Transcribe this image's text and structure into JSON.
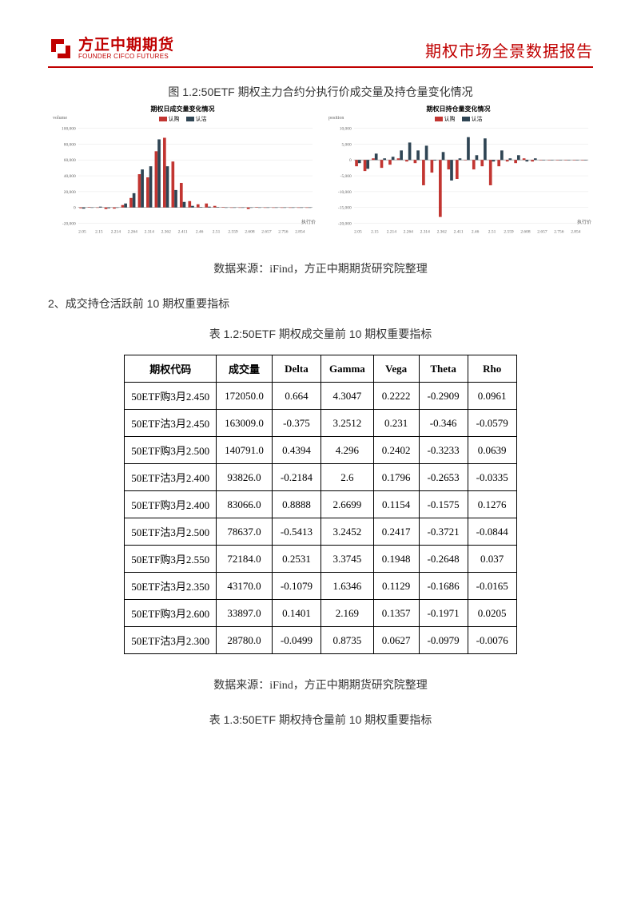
{
  "header": {
    "logo_cn": "方正中期期货",
    "logo_en": "FOUNDER CIFCO FUTURES",
    "report_title": "期权市场全景数据报告",
    "logo_color": "#c00000"
  },
  "figure": {
    "caption": "图 1.2:50ETF 期权主力合约分执行价成交量及持仓量变化情况",
    "source": "数据来源：iFind，方正中期期货研究院整理"
  },
  "chart_common": {
    "legend_call": "认购",
    "legend_put": "认沽",
    "call_color": "#c23531",
    "put_color": "#2f4554",
    "grid_color": "#e6e6e6",
    "xlabel": "执行价",
    "xticks": [
      "2.05",
      "2.15",
      "2.214",
      "2.264",
      "2.314",
      "2.362",
      "2.411",
      "2.46",
      "2.51",
      "2.559",
      "2.608",
      "2.657",
      "2.756",
      "2.854"
    ]
  },
  "chart_left": {
    "title": "期权日成交量变化情况",
    "ylabel": "volume",
    "ylim": [
      -20000,
      100000
    ],
    "yticks": [
      -20000,
      0,
      20000,
      40000,
      60000,
      80000,
      100000
    ],
    "series_call": [
      -1000,
      500,
      -500,
      -2000,
      -1500,
      3000,
      12000,
      42000,
      38000,
      71000,
      88000,
      58000,
      31000,
      8000,
      4000,
      5000,
      2000,
      500,
      -500,
      0,
      -2000,
      500,
      0,
      0,
      0,
      0,
      0,
      0
    ],
    "series_put": [
      -1500,
      -500,
      1000,
      -1000,
      -500,
      5000,
      18000,
      48000,
      52000,
      86000,
      52000,
      22000,
      7000,
      2000,
      500,
      1000,
      500,
      -500,
      0,
      0,
      -500,
      0,
      0,
      0,
      0,
      0,
      0,
      0
    ]
  },
  "chart_right": {
    "title": "期权日持仓量变化情况",
    "ylabel": "position",
    "ylim": [
      -20000,
      10000
    ],
    "yticks": [
      -20000,
      -15000,
      -10000,
      -5000,
      0,
      5000,
      10000
    ],
    "series_call": [
      -2000,
      -3500,
      500,
      -2500,
      -1500,
      500,
      -500,
      -1000,
      -8000,
      -4000,
      -18000,
      -3000,
      -6000,
      0,
      -3000,
      -2000,
      -8000,
      -2000,
      -500,
      -1000,
      500,
      -500,
      0,
      0,
      0,
      0,
      0,
      0
    ],
    "series_put": [
      -1000,
      -2800,
      2000,
      500,
      1000,
      3000,
      5500,
      3000,
      4500,
      -200,
      2500,
      -6500,
      500,
      7200,
      1500,
      6800,
      -500,
      3000,
      500,
      1500,
      -500,
      500,
      0,
      0,
      0,
      0,
      0,
      0
    ]
  },
  "section2": {
    "heading": "2、成交持仓活跃前 10 期权重要指标",
    "table1_caption": "表 1.2:50ETF 期权成交量前 10 期权重要指标",
    "table1_source": "数据来源：iFind，方正中期期货研究院整理",
    "table2_caption": "表 1.3:50ETF 期权持仓量前 10 期权重要指标"
  },
  "table1": {
    "columns": [
      "期权代码",
      "成交量",
      "Delta",
      "Gamma",
      "Vega",
      "Theta",
      "Rho"
    ],
    "rows": [
      [
        "50ETF购3月2.450",
        "172050.0",
        "0.664",
        "4.3047",
        "0.2222",
        "-0.2909",
        "0.0961"
      ],
      [
        "50ETF沽3月2.450",
        "163009.0",
        "-0.375",
        "3.2512",
        "0.231",
        "-0.346",
        "-0.0579"
      ],
      [
        "50ETF购3月2.500",
        "140791.0",
        "0.4394",
        "4.296",
        "0.2402",
        "-0.3233",
        "0.0639"
      ],
      [
        "50ETF沽3月2.400",
        "93826.0",
        "-0.2184",
        "2.6",
        "0.1796",
        "-0.2653",
        "-0.0335"
      ],
      [
        "50ETF购3月2.400",
        "83066.0",
        "0.8888",
        "2.6699",
        "0.1154",
        "-0.1575",
        "0.1276"
      ],
      [
        "50ETF沽3月2.500",
        "78637.0",
        "-0.5413",
        "3.2452",
        "0.2417",
        "-0.3721",
        "-0.0844"
      ],
      [
        "50ETF购3月2.550",
        "72184.0",
        "0.2531",
        "3.3745",
        "0.1948",
        "-0.2648",
        "0.037"
      ],
      [
        "50ETF沽3月2.350",
        "43170.0",
        "-0.1079",
        "1.6346",
        "0.1129",
        "-0.1686",
        "-0.0165"
      ],
      [
        "50ETF购3月2.600",
        "33897.0",
        "0.1401",
        "2.169",
        "0.1357",
        "-0.1971",
        "0.0205"
      ],
      [
        "50ETF沽3月2.300",
        "28780.0",
        "-0.0499",
        "0.8735",
        "0.0627",
        "-0.0979",
        "-0.0076"
      ]
    ]
  }
}
